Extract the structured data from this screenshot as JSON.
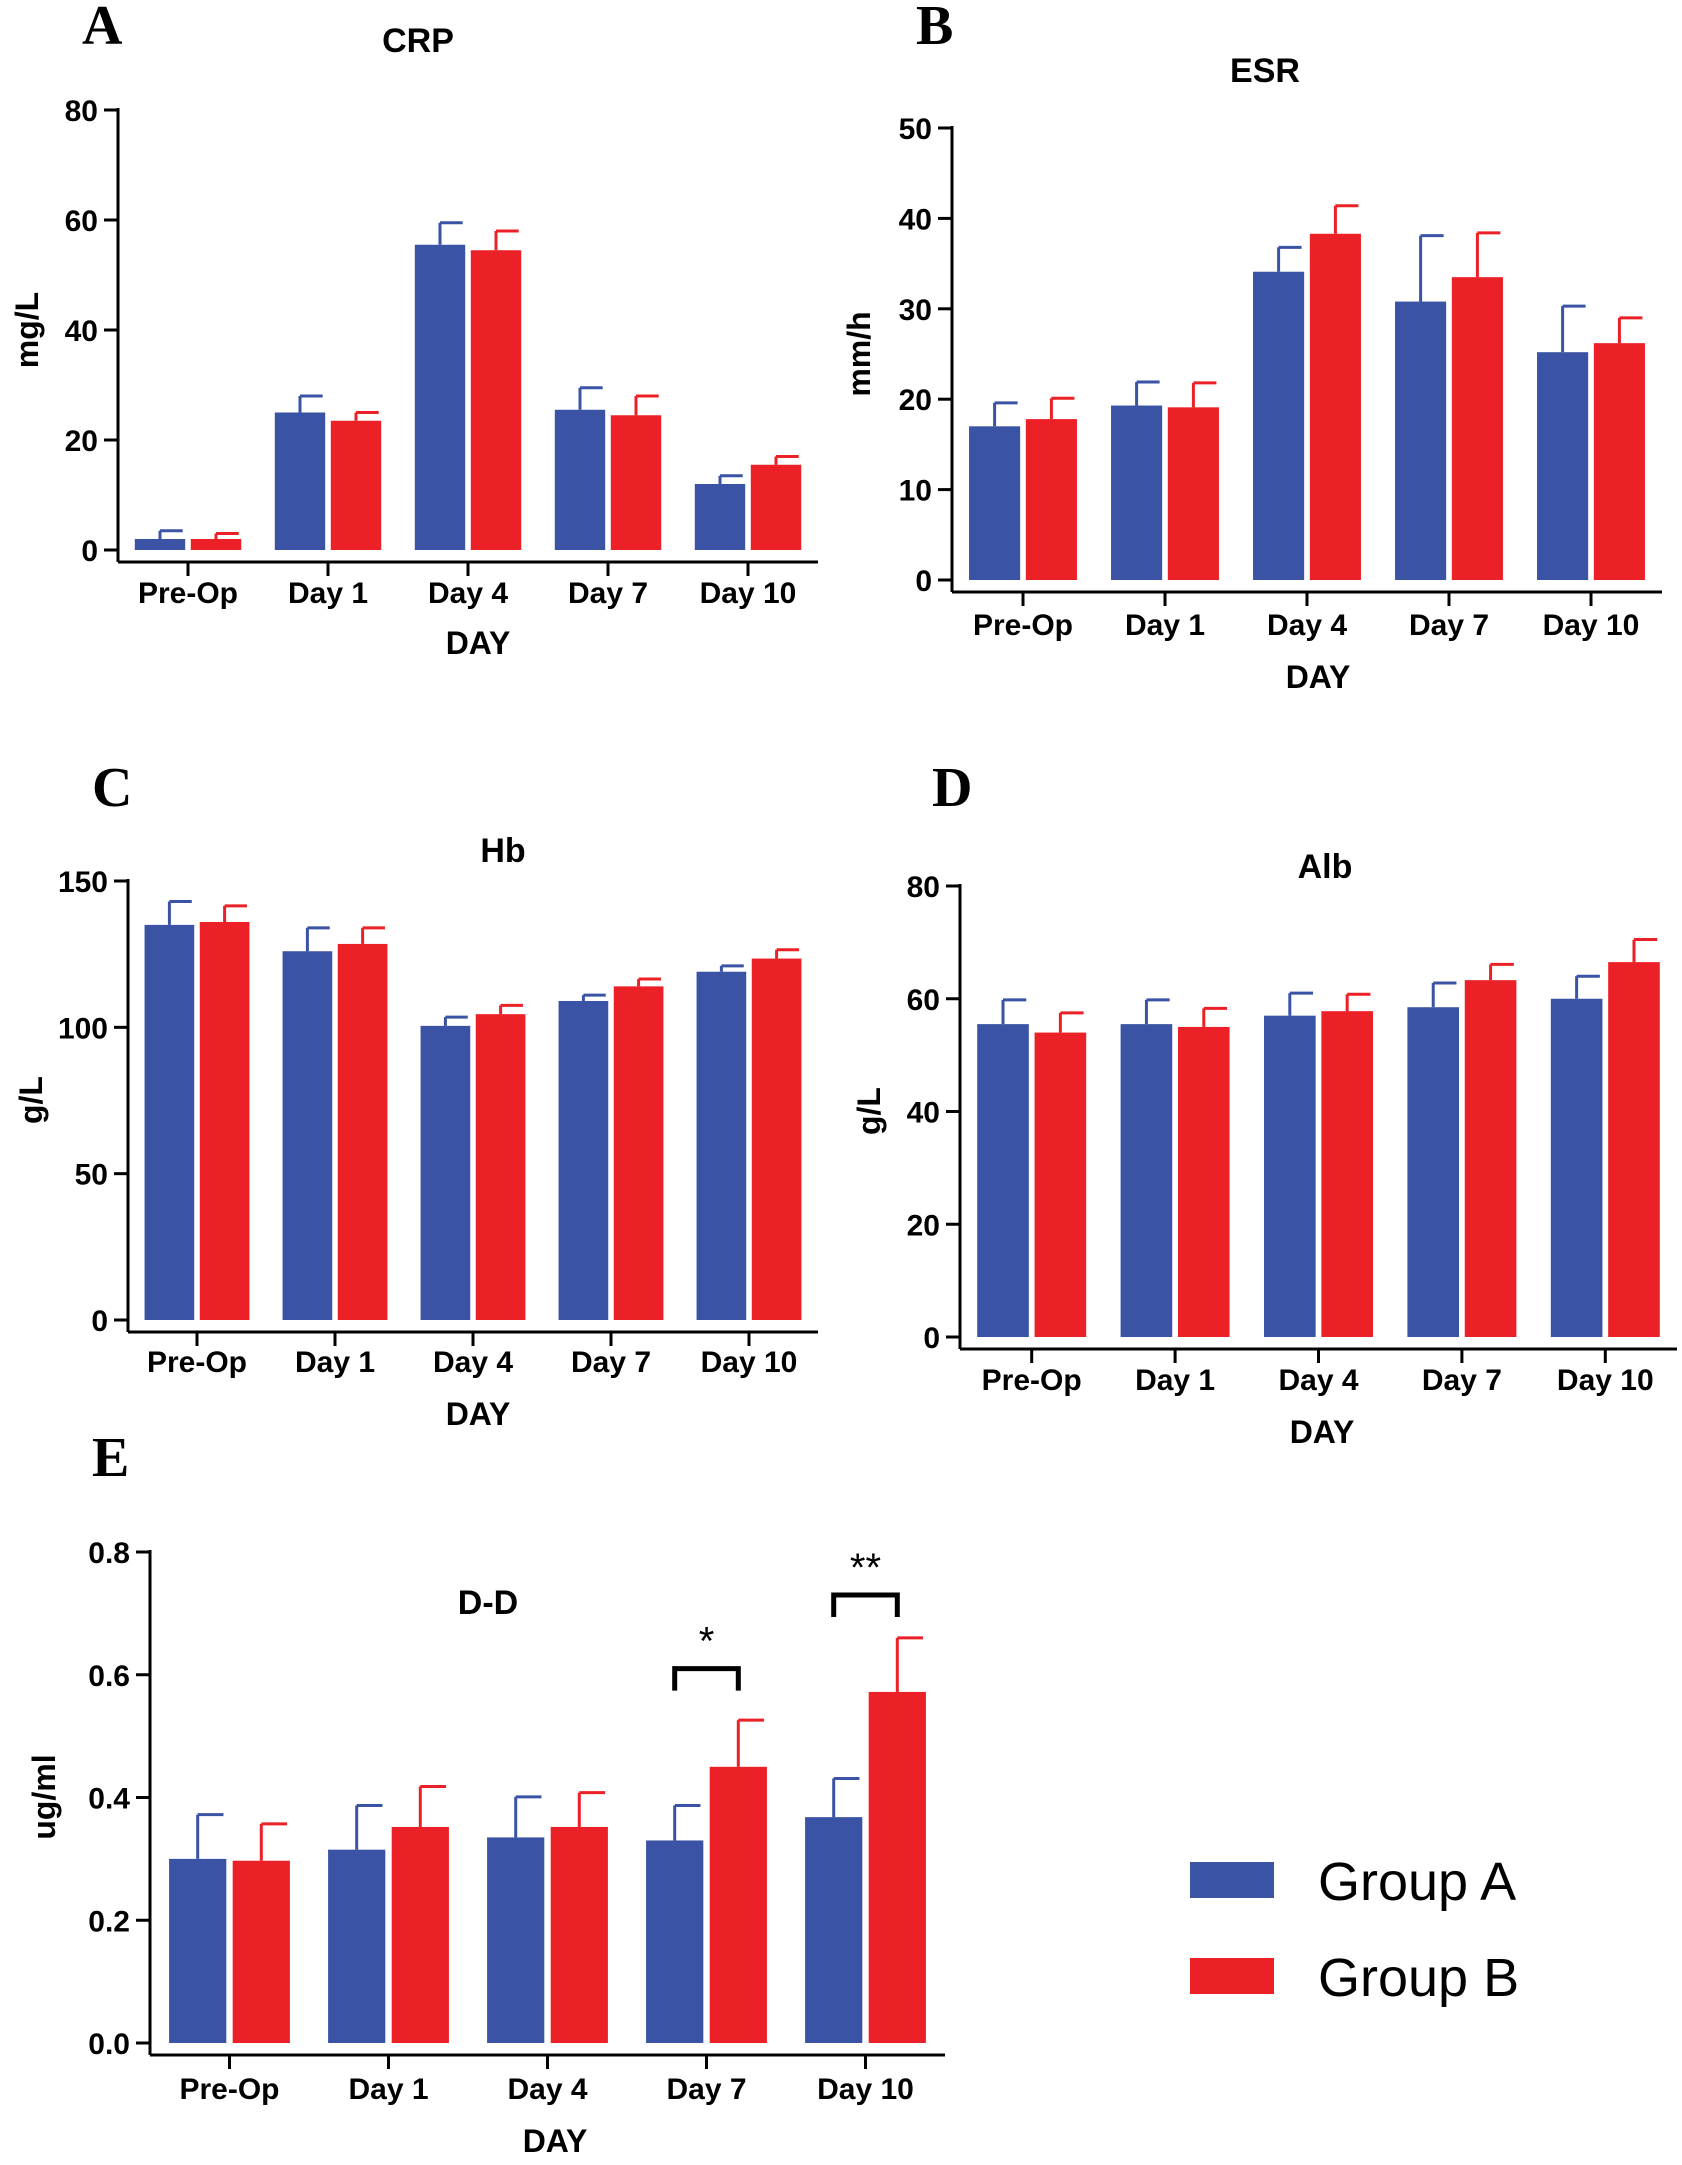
{
  "colors": {
    "group_a": "#3a53a4",
    "group_b": "#ec2127",
    "axis": "#000000"
  },
  "legend": {
    "position": "bottom-right",
    "items": [
      {
        "label": "Group A",
        "color": "#3a53a4"
      },
      {
        "label": "Group B",
        "color": "#ec2127"
      }
    ]
  },
  "chart_data": [
    {
      "panel": "A",
      "type": "bar",
      "title": "CRP",
      "xlabel": "DAY",
      "ylabel": "mg/L",
      "categories": [
        "Pre-Op",
        "Day 1",
        "Day 4",
        "Day 7",
        "Day 10"
      ],
      "ylim": [
        0,
        80
      ],
      "yticks": [
        0,
        20,
        40,
        60,
        80
      ],
      "ytick_labels": [
        "0",
        "20",
        "40",
        "60",
        "80"
      ],
      "series": [
        {
          "name": "Group A",
          "values": [
            2.0,
            25.0,
            55.5,
            25.5,
            12.0
          ],
          "errors": [
            1.5,
            3.0,
            4.0,
            4.0,
            1.5
          ]
        },
        {
          "name": "Group B",
          "values": [
            2.0,
            23.5,
            54.5,
            24.5,
            15.5
          ],
          "errors": [
            1.0,
            1.5,
            3.5,
            3.5,
            1.5
          ]
        }
      ],
      "significance": []
    },
    {
      "panel": "B",
      "type": "bar",
      "title": "ESR",
      "xlabel": "DAY",
      "ylabel": "mm/h",
      "categories": [
        "Pre-Op",
        "Day 1",
        "Day 4",
        "Day 7",
        "Day 10"
      ],
      "ylim": [
        0,
        50
      ],
      "yticks": [
        0,
        10,
        20,
        30,
        40,
        50
      ],
      "ytick_labels": [
        "0",
        "10",
        "20",
        "30",
        "40",
        "50"
      ],
      "series": [
        {
          "name": "Group A",
          "values": [
            17.0,
            19.3,
            34.1,
            30.8,
            25.2
          ],
          "errors": [
            2.6,
            2.6,
            2.7,
            7.3,
            5.1
          ]
        },
        {
          "name": "Group B",
          "values": [
            17.8,
            19.1,
            38.3,
            33.5,
            26.2
          ],
          "errors": [
            2.3,
            2.7,
            3.1,
            4.9,
            2.8
          ]
        }
      ],
      "significance": []
    },
    {
      "panel": "C",
      "type": "bar",
      "title": "Hb",
      "xlabel": "DAY",
      "ylabel": "g/L",
      "categories": [
        "Pre-Op",
        "Day 1",
        "Day 4",
        "Day 7",
        "Day 10"
      ],
      "ylim": [
        0,
        150
      ],
      "yticks": [
        0,
        50,
        100,
        150
      ],
      "ytick_labels": [
        "0",
        "50",
        "100",
        "150"
      ],
      "series": [
        {
          "name": "Group A",
          "values": [
            135,
            126,
            100.5,
            109,
            119
          ],
          "errors": [
            8,
            8,
            3,
            2,
            2
          ]
        },
        {
          "name": "Group B",
          "values": [
            136,
            128.5,
            104.5,
            114,
            123.5
          ],
          "errors": [
            5.5,
            5.5,
            3,
            2.5,
            3
          ]
        }
      ],
      "significance": []
    },
    {
      "panel": "D",
      "type": "bar",
      "title": "Alb",
      "xlabel": "DAY",
      "ylabel": "g/L",
      "categories": [
        "Pre-Op",
        "Day 1",
        "Day 4",
        "Day 7",
        "Day 10"
      ],
      "ylim": [
        0,
        80
      ],
      "yticks": [
        0,
        20,
        40,
        60,
        80
      ],
      "ytick_labels": [
        "0",
        "20",
        "40",
        "60",
        "80"
      ],
      "series": [
        {
          "name": "Group A",
          "values": [
            55.5,
            55.5,
            57.0,
            58.5,
            60.0
          ],
          "errors": [
            4.3,
            4.3,
            4.0,
            4.3,
            4.0
          ]
        },
        {
          "name": "Group B",
          "values": [
            54.0,
            55.0,
            57.8,
            63.3,
            66.5
          ],
          "errors": [
            3.5,
            3.3,
            3.0,
            2.8,
            4.0
          ]
        }
      ],
      "significance": []
    },
    {
      "panel": "E",
      "type": "bar",
      "title": "D-D",
      "xlabel": "DAY",
      "ylabel": "ug/ml",
      "categories": [
        "Pre-Op",
        "Day 1",
        "Day 4",
        "Day 7",
        "Day 10"
      ],
      "ylim": [
        0,
        0.8
      ],
      "yticks": [
        0,
        0.2,
        0.4,
        0.6,
        0.8
      ],
      "ytick_labels": [
        "0.0",
        "0.2",
        "0.4",
        "0.6",
        "0.8"
      ],
      "series": [
        {
          "name": "Group A",
          "values": [
            0.3,
            0.315,
            0.335,
            0.33,
            0.368
          ],
          "errors": [
            0.072,
            0.072,
            0.066,
            0.057,
            0.063
          ]
        },
        {
          "name": "Group B",
          "values": [
            0.297,
            0.352,
            0.352,
            0.45,
            0.572
          ],
          "errors": [
            0.06,
            0.066,
            0.056,
            0.076,
            0.088
          ]
        }
      ],
      "significance": [
        {
          "category_index": 3,
          "label": "*",
          "level": 0.61
        },
        {
          "category_index": 4,
          "label": "**",
          "level": 0.73
        }
      ]
    }
  ]
}
